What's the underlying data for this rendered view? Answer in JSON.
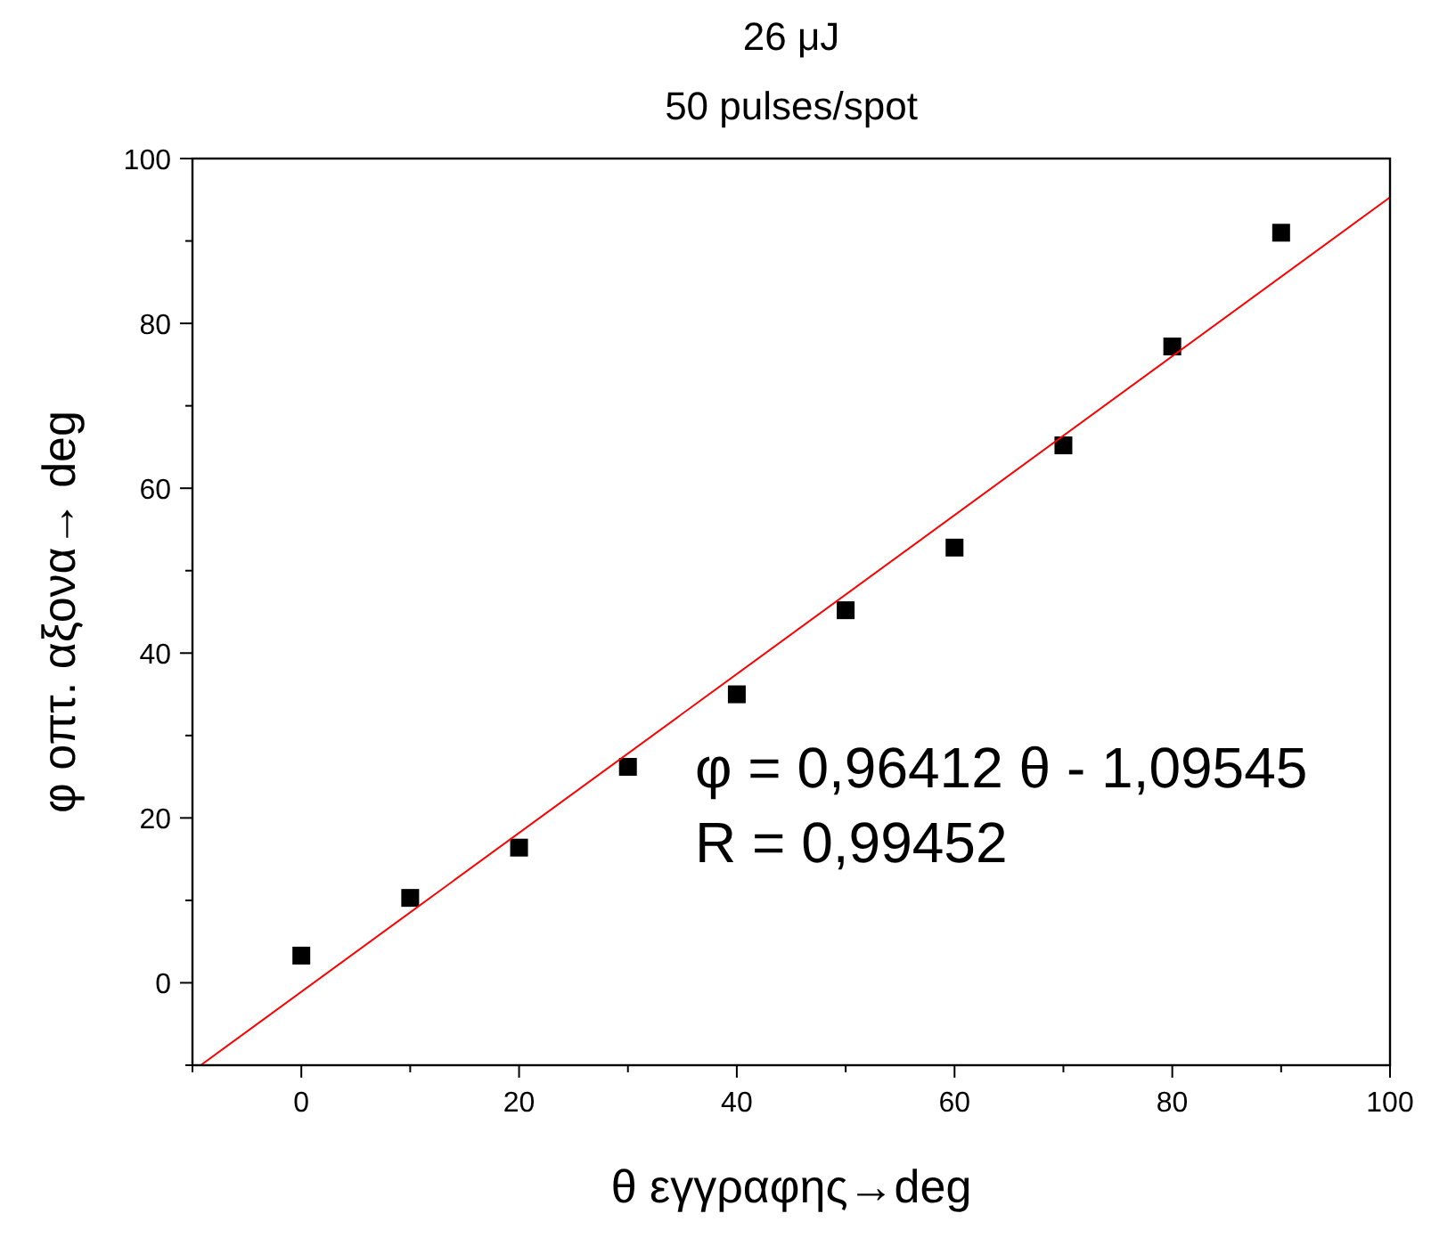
{
  "chart_data": {
    "type": "scatter",
    "title": "26 μJ",
    "subtitle": "50 pulses/spot",
    "xlabel": "θ εγγραφης→deg",
    "ylabel": "φ οπτ.  αξονα→ deg",
    "xlim": [
      -10,
      100
    ],
    "ylim": [
      -10,
      100
    ],
    "xticks": [
      {
        "value": -10,
        "label": null
      },
      0,
      {
        "value": 10,
        "label": null
      },
      20,
      {
        "value": 30,
        "label": null
      },
      40,
      {
        "value": 50,
        "label": null
      },
      60,
      {
        "value": 70,
        "label": null
      },
      80,
      {
        "value": 90,
        "label": null
      },
      100
    ],
    "yticks": [
      {
        "value": -10,
        "label": null
      },
      0,
      {
        "value": 10,
        "label": null
      },
      20,
      {
        "value": 30,
        "label": null
      },
      40,
      {
        "value": 50,
        "label": null
      },
      60,
      {
        "value": 70,
        "label": null
      },
      80,
      {
        "value": 90,
        "label": null
      },
      100
    ],
    "grid": false,
    "series": [
      {
        "marker": "square",
        "color": "#000000",
        "x": [
          0,
          10,
          20,
          30,
          40,
          50,
          60,
          70,
          80,
          90
        ],
        "values": [
          3.3,
          10.3,
          16.4,
          26.2,
          35,
          45.2,
          52.8,
          65.2,
          77.2,
          91
        ]
      },
      {
        "type": "line",
        "marker": "none",
        "color": "#ff0000",
        "x": [
          -9.24,
          100
        ],
        "values": [
          -10,
          95.3
        ]
      }
    ],
    "annotations": [
      "φ = 0,96412 θ - 1,09545",
      "R = 0,99452"
    ]
  }
}
